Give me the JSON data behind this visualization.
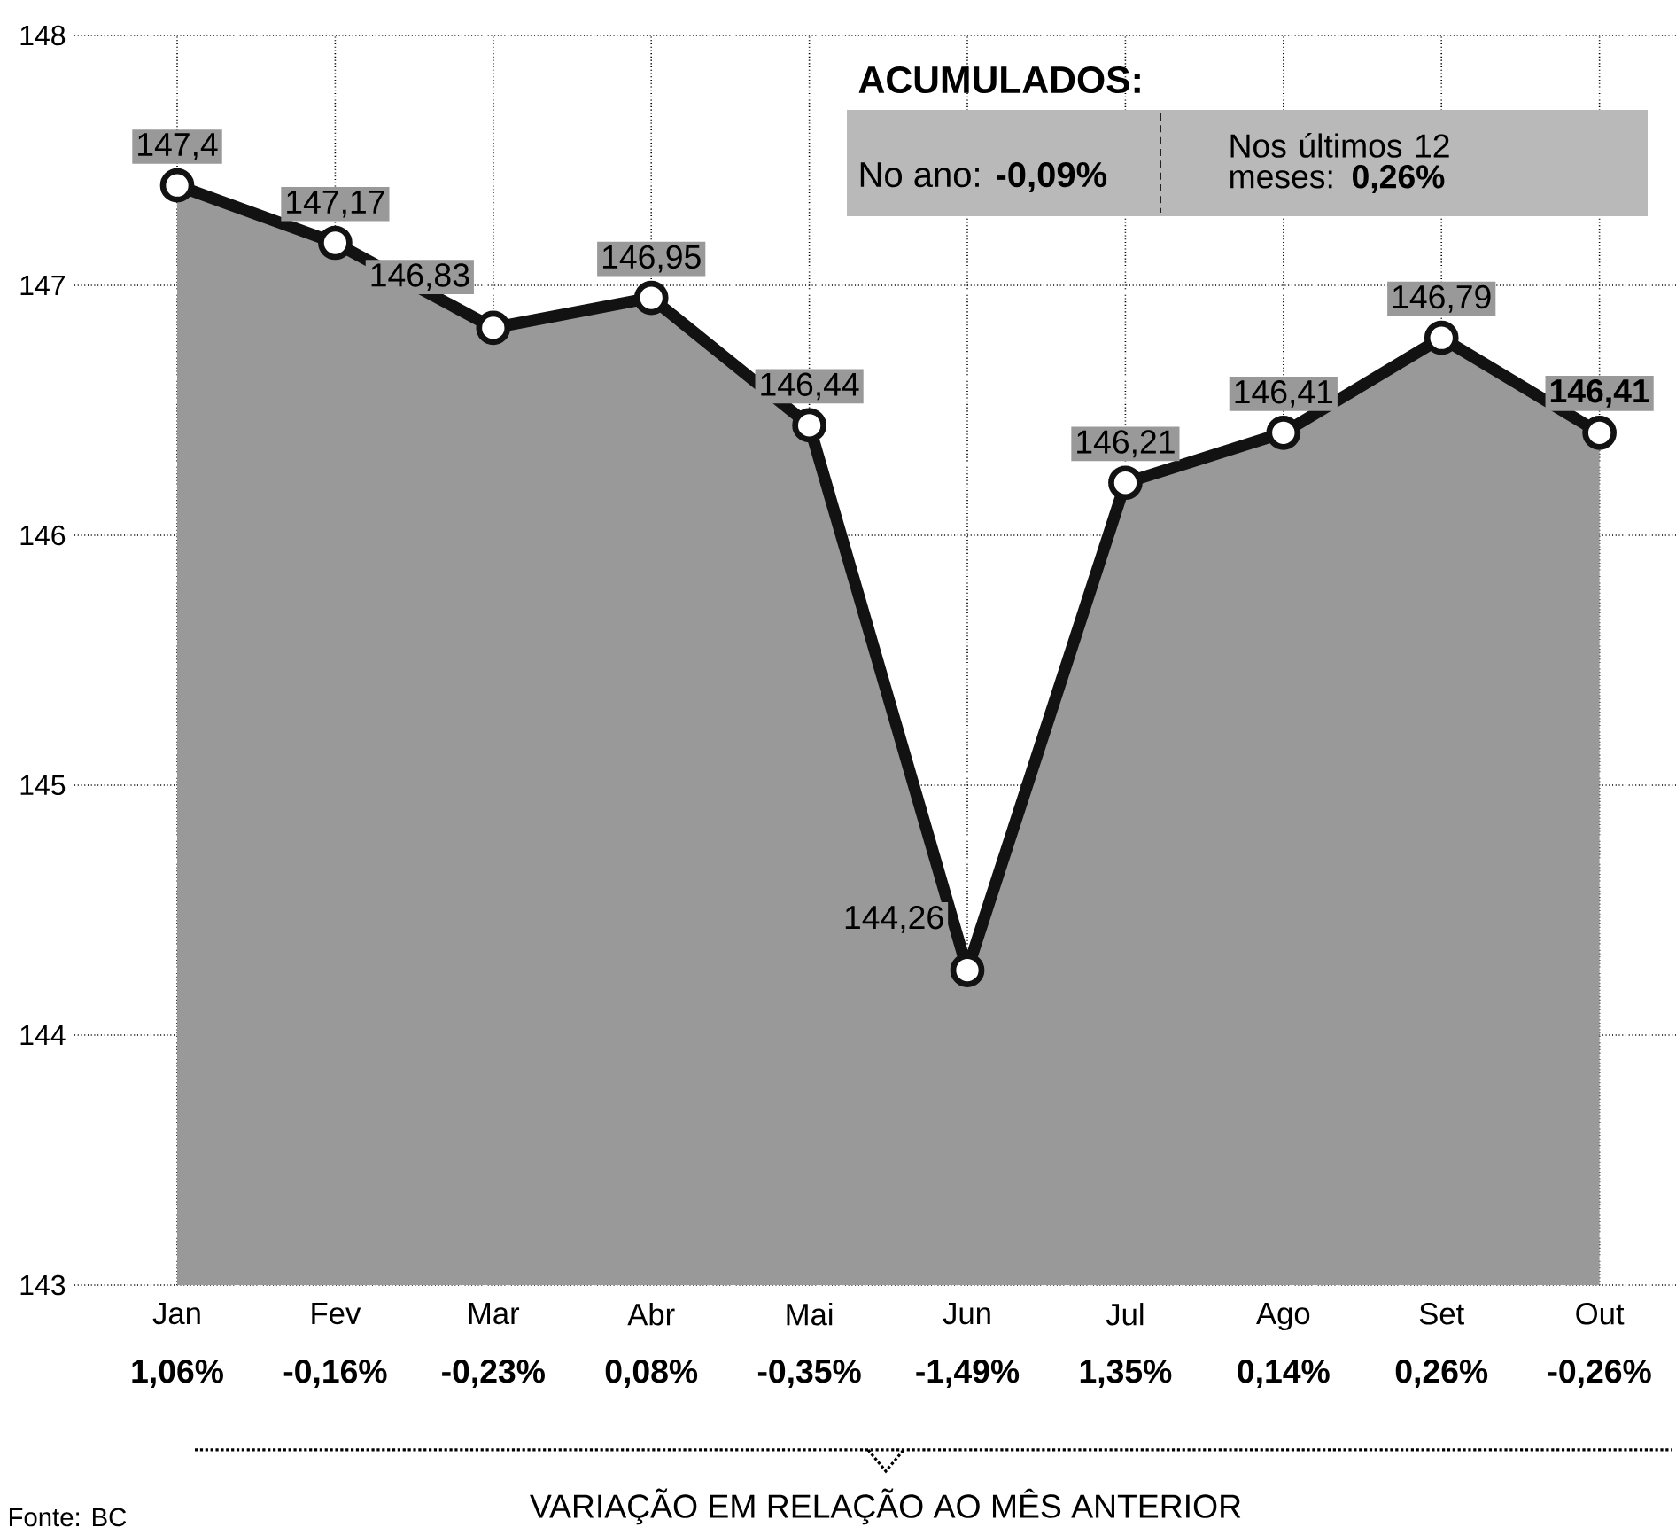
{
  "chart_data": {
    "type": "area",
    "categories": [
      "Jan",
      "Fev",
      "Mar",
      "Abr",
      "Mai",
      "Jun",
      "Jul",
      "Ago",
      "Set",
      "Out"
    ],
    "series": [
      {
        "color": "#999999",
        "values": [
          147.4,
          147.17,
          146.83,
          146.95,
          146.44,
          144.26,
          146.21,
          146.41,
          146.79,
          146.41
        ],
        "value_labels": [
          "147,4",
          "147,17",
          "146,83",
          "146,95",
          "146,44",
          "144,26",
          "146,21",
          "146,41",
          "146,79",
          "146,41"
        ]
      }
    ],
    "ylim": [
      143,
      148
    ],
    "yticks": [
      143,
      144,
      145,
      146,
      147,
      148
    ],
    "grid": true,
    "marker": "circle",
    "line_style": "solid",
    "annotations": [
      "1,06%",
      "-0,16%",
      "-0,23%",
      "0,08%",
      "-0,35%",
      "-1,49%",
      "1,35%",
      "0,14%",
      "0,26%",
      "-0,26%",
      "ACUMULADOS:",
      "No ano: **-0,09%**",
      "Nos últimos 12 meses: **0,26%**",
      "VARIAÇÃO EM RELAÇÃO AO MÊS ANTERIOR",
      "Fonte: BC"
    ]
  }
}
